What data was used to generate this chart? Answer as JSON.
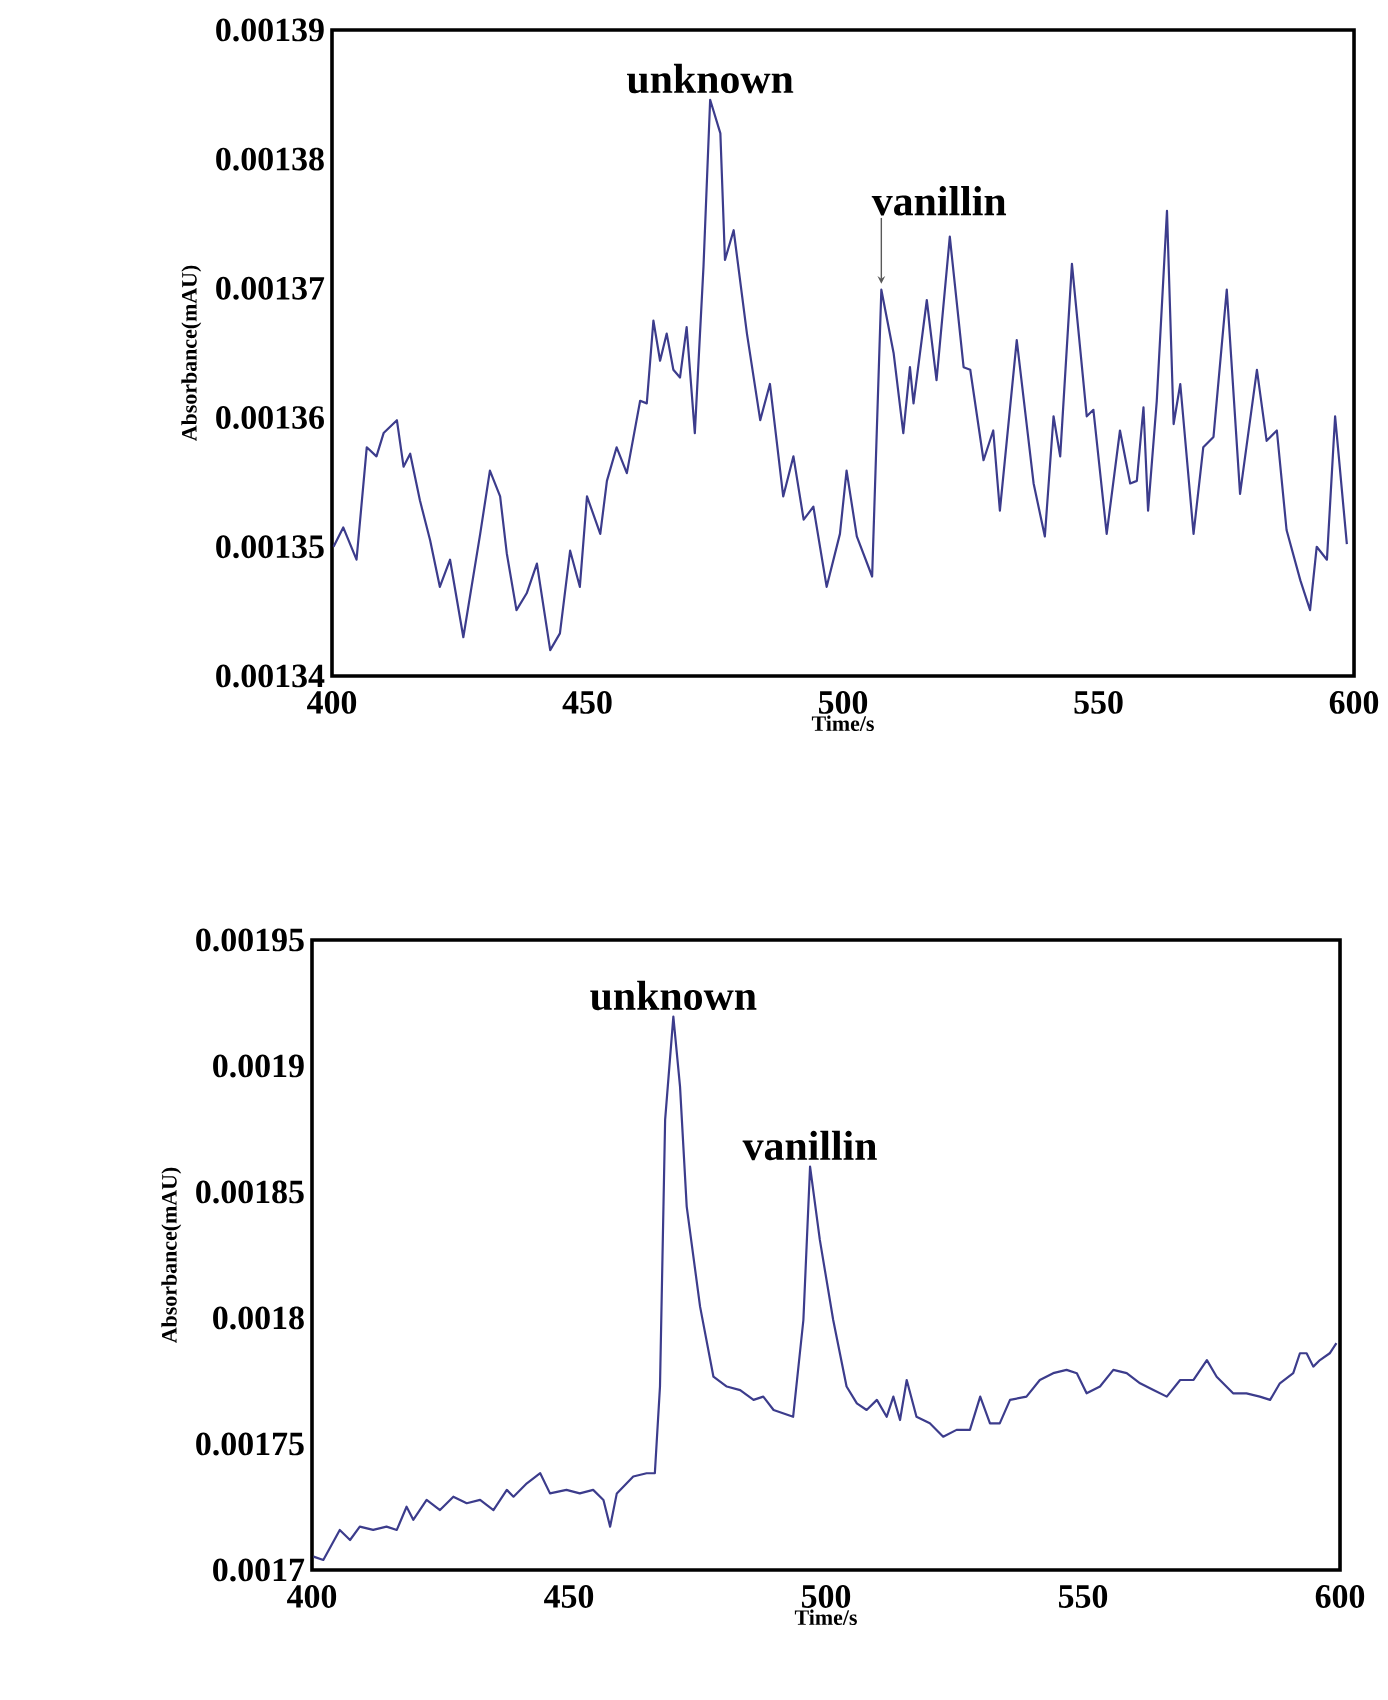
{
  "chart_data": [
    {
      "type": "line",
      "xlabel": "Time/s",
      "ylabel": "Absorbance(mAU)",
      "color": "#3c3c8c",
      "xlim": [
        400,
        600
      ],
      "ylim": [
        0.00134,
        0.00139
      ],
      "xticks": [
        400,
        450,
        500,
        550,
        600
      ],
      "yticks": [
        0.00134,
        0.00135,
        0.00136,
        0.00137,
        0.00138,
        0.00139
      ],
      "annotations": [
        {
          "text": "unknown",
          "x": 474.0,
          "y": 0.0013846
        },
        {
          "text": "vanillin",
          "x": 507.5,
          "y": 0.0013699
        }
      ],
      "x": [
        400.3,
        402.2,
        404.8,
        406.8,
        408.7,
        410.1,
        412.7,
        414.0,
        415.3,
        417.2,
        419.2,
        421.1,
        423.1,
        425.7,
        429.0,
        430.9,
        432.9,
        434.2,
        436.1,
        438.1,
        440.1,
        442.7,
        444.6,
        446.6,
        448.5,
        449.9,
        452.5,
        453.8,
        455.7,
        457.7,
        460.3,
        461.6,
        462.9,
        464.2,
        465.5,
        466.8,
        468.1,
        469.4,
        471.0,
        472.7,
        474.0,
        476.0,
        476.9,
        478.6,
        481.2,
        483.8,
        485.7,
        488.3,
        490.3,
        492.3,
        494.2,
        496.8,
        499.4,
        500.7,
        502.7,
        505.7,
        507.5,
        509.9,
        511.8,
        513.1,
        513.8,
        516.4,
        518.3,
        520.9,
        523.6,
        524.9,
        527.5,
        529.4,
        530.7,
        534.0,
        537.3,
        539.5,
        541.2,
        542.5,
        544.8,
        547.7,
        549.0,
        551.6,
        554.2,
        556.2,
        557.5,
        558.8,
        559.7,
        561.4,
        563.4,
        564.7,
        566.0,
        568.6,
        570.5,
        572.5,
        575.1,
        577.7,
        581.0,
        582.9,
        584.9,
        586.8,
        589.5,
        591.4,
        592.7,
        594.7,
        596.3,
        598.6
      ],
      "values": [
        0.00135,
        0.0013515,
        0.001349,
        0.0013577,
        0.001357,
        0.0013588,
        0.0013598,
        0.0013562,
        0.0013572,
        0.0013536,
        0.0013505,
        0.0013469,
        0.001349,
        0.001343,
        0.001351,
        0.0013559,
        0.0013539,
        0.0013495,
        0.0013451,
        0.0013464,
        0.0013487,
        0.001342,
        0.0013433,
        0.0013497,
        0.0013469,
        0.0013539,
        0.001351,
        0.0013551,
        0.0013577,
        0.0013557,
        0.0013613,
        0.0013611,
        0.0013675,
        0.0013644,
        0.0013665,
        0.0013637,
        0.0013631,
        0.001367,
        0.0013588,
        0.0013717,
        0.0013846,
        0.001382,
        0.0013722,
        0.0013745,
        0.0013665,
        0.0013598,
        0.0013626,
        0.0013539,
        0.001357,
        0.0013521,
        0.0013531,
        0.0013469,
        0.001351,
        0.0013559,
        0.0013508,
        0.0013477,
        0.0013699,
        0.001365,
        0.0013588,
        0.0013639,
        0.0013611,
        0.0013691,
        0.0013629,
        0.001374,
        0.0013639,
        0.0013637,
        0.0013567,
        0.001359,
        0.0013528,
        0.001366,
        0.0013549,
        0.0013508,
        0.0013601,
        0.001357,
        0.0013719,
        0.0013601,
        0.0013606,
        0.001351,
        0.001359,
        0.0013549,
        0.0013551,
        0.0013608,
        0.0013528,
        0.0013613,
        0.001376,
        0.0013595,
        0.0013626,
        0.001351,
        0.0013577,
        0.0013585,
        0.0013699,
        0.0013541,
        0.0013637,
        0.0013582,
        0.001359,
        0.0013513,
        0.0013474,
        0.0013451,
        0.00135,
        0.001349,
        0.0013601,
        0.0013502
      ]
    },
    {
      "type": "line",
      "xlabel": "Time/s",
      "ylabel": "Absorbance(mAU)",
      "color": "#3c3c8c",
      "xlim": [
        400,
        600
      ],
      "ylim": [
        0.0017,
        0.00195
      ],
      "xticks": [
        400,
        450,
        500,
        550,
        600
      ],
      "yticks": [
        0.0017,
        0.00175,
        0.0018,
        0.00185,
        0.0019,
        0.00195
      ],
      "annotations": [
        {
          "text": "unknown",
          "x": 470.3,
          "y": 0.0019196
        },
        {
          "text": "vanillin",
          "x": 496.9,
          "y": 0.0018601
        }
      ],
      "x": [
        400.3,
        402.2,
        405.4,
        407.4,
        409.3,
        411.9,
        414.5,
        416.5,
        418.4,
        419.7,
        422.3,
        424.9,
        427.5,
        430.1,
        432.7,
        435.3,
        437.9,
        439.2,
        441.8,
        444.4,
        446.3,
        449.5,
        452.1,
        454.7,
        456.7,
        458.0,
        459.3,
        462.5,
        465.1,
        466.7,
        467.7,
        468.7,
        470.3,
        471.6,
        472.9,
        475.5,
        478.1,
        480.7,
        483.3,
        485.9,
        487.8,
        489.8,
        493.6,
        495.6,
        496.9,
        498.8,
        501.4,
        504.0,
        506.0,
        507.9,
        509.9,
        511.8,
        513.1,
        514.4,
        515.7,
        517.6,
        520.2,
        522.8,
        525.4,
        528.0,
        530.0,
        531.9,
        533.8,
        535.8,
        539.0,
        541.6,
        544.2,
        546.8,
        548.8,
        550.7,
        553.3,
        555.9,
        558.5,
        561.1,
        563.7,
        566.3,
        568.9,
        571.5,
        574.1,
        576.0,
        579.2,
        581.8,
        584.4,
        586.4,
        588.3,
        590.9,
        592.2,
        593.5,
        594.8,
        596.1,
        598.0,
        599.3
      ],
      "values": [
        0.0017053,
        0.001704,
        0.0017159,
        0.0017119,
        0.0017172,
        0.0017159,
        0.0017172,
        0.0017159,
        0.0017251,
        0.0017199,
        0.0017278,
        0.0017238,
        0.0017291,
        0.0017265,
        0.0017278,
        0.0017238,
        0.0017318,
        0.0017291,
        0.0017344,
        0.0017384,
        0.0017304,
        0.0017318,
        0.0017304,
        0.0017318,
        0.0017278,
        0.0017172,
        0.0017304,
        0.0017371,
        0.0017384,
        0.0017384,
        0.0017728,
        0.0018786,
        0.0019196,
        0.0018918,
        0.0018442,
        0.0018045,
        0.0017767,
        0.0017728,
        0.0017714,
        0.0017675,
        0.0017688,
        0.0017635,
        0.0017608,
        0.0017992,
        0.0018601,
        0.001831,
        0.0017992,
        0.0017728,
        0.0017661,
        0.0017635,
        0.0017675,
        0.0017608,
        0.0017688,
        0.0017595,
        0.0017754,
        0.0017608,
        0.0017582,
        0.0017529,
        0.0017556,
        0.0017556,
        0.0017688,
        0.0017582,
        0.0017582,
        0.0017675,
        0.0017688,
        0.0017754,
        0.0017781,
        0.0017794,
        0.0017781,
        0.0017701,
        0.0017728,
        0.0017794,
        0.0017781,
        0.0017741,
        0.0017714,
        0.0017688,
        0.0017754,
        0.0017754,
        0.0017833,
        0.0017767,
        0.0017701,
        0.0017701,
        0.0017688,
        0.0017675,
        0.0017741,
        0.0017781,
        0.001786,
        0.001786,
        0.0017807,
        0.0017833,
        0.001786,
        0.00179
      ]
    }
  ]
}
